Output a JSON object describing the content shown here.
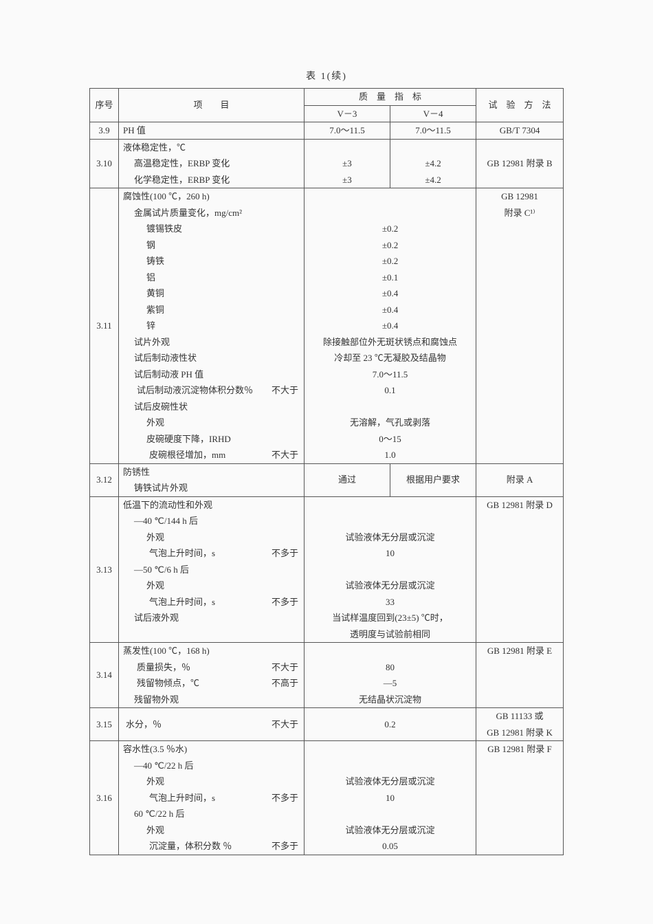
{
  "caption": "表 1(续)",
  "head": {
    "seq": "序号",
    "item": "项　　目",
    "spec": "质　量　指　标",
    "v3": "V－3",
    "v4": "V－4",
    "method": "试　验　方　法"
  },
  "r39": {
    "seq": "3.9",
    "item": "PH 值",
    "v3": "7.0～11.5",
    "v4": "7.0～11.5",
    "method": "GB/T 7304"
  },
  "r310": {
    "seq": "3.10",
    "l1": "液体稳定性，℃",
    "l2": "高温稳定性，ERBP 变化",
    "l3": "化学稳定性，ERBP 变化",
    "v3a": "±3",
    "v4a": "±4.2",
    "v3b": "±3",
    "v4b": "±4.2",
    "method": "GB 12981 附录 B"
  },
  "r311": {
    "seq": "3.11",
    "l1": "腐蚀性(100 ℃，260 h)",
    "l2": "金属试片质量变化，mg/cm²",
    "m1": "镀锡铁皮",
    "m1v": "±0.2",
    "m2": "钢",
    "m2v": "±0.2",
    "m3": "铸铁",
    "m3v": "±0.2",
    "m4": "铝",
    "m4v": "±0.1",
    "m5": "黄铜",
    "m5v": "±0.4",
    "m6": "紫铜",
    "m6v": "±0.4",
    "m7": "锌",
    "m7v": "±0.4",
    "l3": "试片外观",
    "l3v": "除接触部位外无斑状锈点和腐蚀点",
    "l4": "试后制动液性状",
    "l4v": "冷却至 23 ℃无凝胶及结晶物",
    "l5": "试后制动液 PH 值",
    "l5v": "7.0～11.5",
    "l6": "试后制动液沉淀物体积分数％",
    "q6": "不大于",
    "l6v": "0.1",
    "l7": "试后皮碗性状",
    "l8": "外观",
    "l8v": "无溶解，气孔或剥落",
    "l9": "皮碗硬度下降，IRHD",
    "l9v": "0～15",
    "l10": "皮碗根径增加，mm",
    "q10": "不大于",
    "l10v": "1.0",
    "method1": "GB 12981",
    "method2": "附录 C¹⁾"
  },
  "r312": {
    "seq": "3.12",
    "l1": "防锈性",
    "l2": "铸铁试片外观",
    "v3": "通过",
    "v4": "根据用户要求",
    "method": "附录 A"
  },
  "r313": {
    "seq": "3.13",
    "l1": "低温下的流动性和外观",
    "l2": "—40 ℃/144 h 后",
    "l3": "外观",
    "l3v": "试验液体无分层或沉淀",
    "l4": "气泡上升时间，s",
    "q4": "不多于",
    "l4v": "10",
    "l5": "—50 ℃/6 h 后",
    "l6": "外观",
    "l6v": "试验液体无分层或沉淀",
    "l7": "气泡上升时间，s",
    "q7": "不多于",
    "l7v": "33",
    "l8": "试后液外观",
    "l8v1": "当试样温度回到(23±5) ℃时，",
    "l8v2": "透明度与试验前相同",
    "method": "GB 12981 附录 D"
  },
  "r314": {
    "seq": "3.14",
    "l1": "蒸发性(100 ℃，168 h)",
    "l2": "质量损失，％",
    "q2": "不大于",
    "l2v": "80",
    "l3": "残留物倾点，℃",
    "q3": "不高于",
    "l3v": "—5",
    "l4": "残留物外观",
    "l4v": "无结晶状沉淀物",
    "method": "GB 12981 附录 E"
  },
  "r315": {
    "seq": "3.15",
    "l1": "水分，％",
    "q1": "不大于",
    "v": "0.2",
    "method1": "GB 11133 或",
    "method2": "GB 12981 附录 K"
  },
  "r316": {
    "seq": "3.16",
    "l1": "容水性(3.5 ％水)",
    "l2": "—40 ℃/22 h 后",
    "l3": "外观",
    "l3v": "试验液体无分层或沉淀",
    "l4": "气泡上升时间，s",
    "q4": "不多于",
    "l4v": "10",
    "l5": "60 ℃/22 h 后",
    "l6": "外观",
    "l6v": "试验液体无分层或沉淀",
    "l7": "沉淀量，体积分数 ％",
    "q7": "不多于",
    "l7v": "0.05",
    "method": "GB 12981 附录 F"
  }
}
